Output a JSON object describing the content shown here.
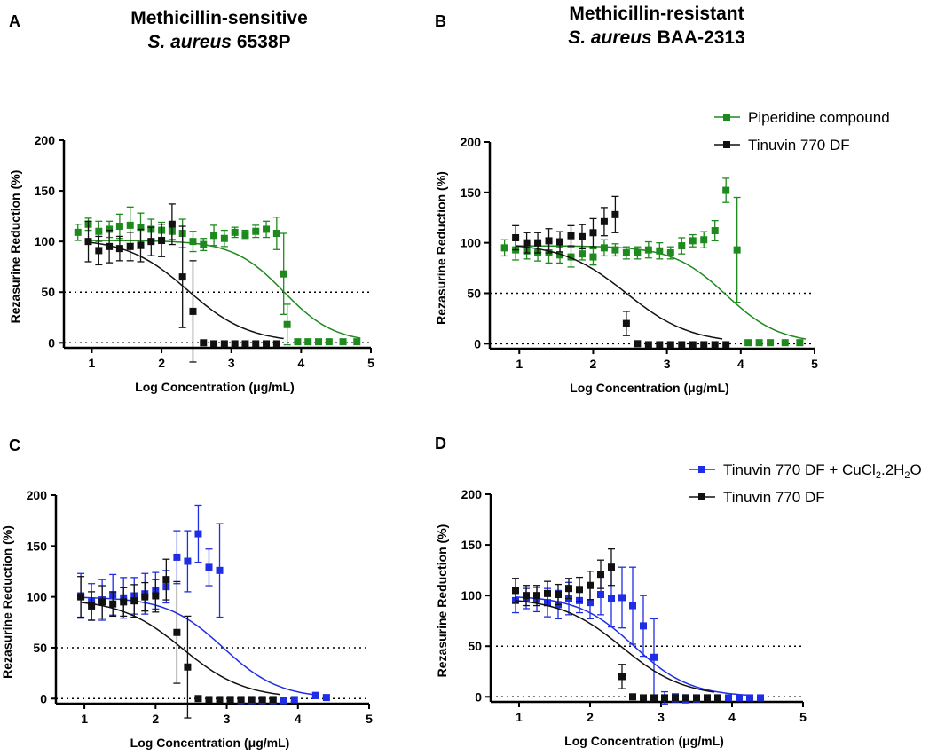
{
  "figure": {
    "column_titles": {
      "A": {
        "line1": "Methicillin-sensitive",
        "species": "S. aureus",
        "strain": "6538P"
      },
      "B": {
        "line1": "Methicillin-resistant",
        "species": "S. aureus",
        "strain": "BAA-2313"
      }
    },
    "legends": {
      "top": [
        "Piperidine compound",
        "Tinuvin 770 DF"
      ],
      "bottom": [
        {
          "parts": [
            "Tinuvin 770 DF + CuCl",
            "2",
            ".2H",
            "2",
            "O"
          ]
        },
        {
          "parts": [
            "Tinuvin 770 DF"
          ]
        }
      ]
    },
    "colors": {
      "green": "#1e8a1e",
      "black": "#111111",
      "blue": "#1f2ee6"
    }
  },
  "chart_data": [
    {
      "panel": "A",
      "type": "scatter",
      "xlabel": "Log Concentration (μg/mL)",
      "ylabel": "Rezasurine Reduction (%)",
      "xlim": [
        0.6,
        5
      ],
      "ylim": [
        -5,
        200
      ],
      "xticks": [
        "1",
        "2",
        "3",
        "4",
        "5"
      ],
      "yticks": [
        "0",
        "50",
        "100",
        "150",
        "200"
      ],
      "reference_lines": [
        50,
        0
      ],
      "series": [
        {
          "name": "Piperidine compound",
          "color": "#1e8a1e",
          "x": [
            0.8,
            0.95,
            1.1,
            1.25,
            1.4,
            1.55,
            1.7,
            1.85,
            2.0,
            2.15,
            2.3,
            2.45,
            2.6,
            2.75,
            2.9,
            3.05,
            3.2,
            3.35,
            3.5,
            3.65,
            3.75,
            3.8,
            3.95,
            4.1,
            4.25,
            4.4,
            4.6,
            4.8
          ],
          "y": [
            109,
            117,
            110,
            112,
            115,
            116,
            114,
            112,
            111,
            110,
            108,
            100,
            97,
            106,
            103,
            109,
            107,
            110,
            112,
            108,
            68,
            18,
            1,
            1,
            1,
            1,
            1,
            1
          ],
          "err": [
            8,
            6,
            10,
            8,
            12,
            18,
            14,
            10,
            8,
            8,
            14,
            10,
            6,
            10,
            8,
            5,
            4,
            6,
            8,
            16,
            40,
            20,
            1,
            1,
            1,
            1,
            1,
            1
          ],
          "fit": {
            "top": 101,
            "bottom": 0,
            "logIC50": 3.75,
            "hill": 1.2,
            "xmax": 4.85
          }
        },
        {
          "name": "Tinuvin 770 DF",
          "color": "#111111",
          "x": [
            0.95,
            1.1,
            1.25,
            1.4,
            1.55,
            1.7,
            1.85,
            2.0,
            2.15,
            2.3,
            2.45,
            2.6,
            2.75,
            2.9,
            3.05,
            3.2,
            3.35,
            3.5,
            3.65
          ],
          "y": [
            100,
            91,
            95,
            93,
            95,
            96,
            100,
            101,
            117,
            65,
            31,
            0,
            -1,
            -1,
            -1,
            -1,
            -1,
            -1,
            -1
          ],
          "err": [
            20,
            14,
            16,
            12,
            14,
            16,
            14,
            16,
            20,
            50,
            50,
            1,
            1,
            1,
            1,
            1,
            1,
            1,
            1
          ],
          "fit": {
            "top": 103,
            "bottom": 0,
            "logIC50": 2.38,
            "hill": 1.0,
            "xmax": 3.75
          }
        }
      ]
    },
    {
      "panel": "B",
      "type": "scatter",
      "xlabel": "Log Concentration (μg/mL)",
      "ylabel": "Rezasurine Reduction (%)",
      "xlim": [
        0.6,
        5
      ],
      "ylim": [
        -5,
        200
      ],
      "xticks": [
        "1",
        "2",
        "3",
        "4",
        "5"
      ],
      "yticks": [
        "0",
        "50",
        "100",
        "150",
        "200"
      ],
      "reference_lines": [
        50,
        0
      ],
      "series": [
        {
          "name": "Piperidine compound",
          "color": "#1e8a1e",
          "x": [
            0.8,
            0.95,
            1.1,
            1.25,
            1.4,
            1.55,
            1.7,
            1.85,
            2.0,
            2.15,
            2.3,
            2.45,
            2.6,
            2.75,
            2.9,
            3.05,
            3.2,
            3.35,
            3.5,
            3.65,
            3.8,
            3.95,
            4.1,
            4.25,
            4.4,
            4.6,
            4.8
          ],
          "y": [
            95,
            93,
            92,
            90,
            90,
            88,
            86,
            89,
            86,
            95,
            93,
            90,
            90,
            93,
            92,
            90,
            97,
            102,
            103,
            112,
            152,
            93,
            1,
            1,
            1,
            1,
            1
          ],
          "err": [
            8,
            10,
            8,
            8,
            10,
            8,
            10,
            6,
            8,
            8,
            6,
            6,
            6,
            8,
            8,
            6,
            8,
            6,
            8,
            10,
            12,
            52,
            1,
            1,
            1,
            1,
            1
          ],
          "fit": {
            "top": 97,
            "bottom": 0,
            "logIC50": 3.8,
            "hill": 1.2,
            "xmax": 4.88
          }
        },
        {
          "name": "Tinuvin 770 DF",
          "color": "#111111",
          "x": [
            0.95,
            1.1,
            1.25,
            1.4,
            1.55,
            1.7,
            1.85,
            2.0,
            2.15,
            2.3,
            2.45,
            2.6,
            2.75,
            2.9,
            3.05,
            3.2,
            3.35,
            3.5,
            3.65,
            3.8
          ],
          "y": [
            105,
            100,
            100,
            102,
            101,
            107,
            106,
            110,
            121,
            128,
            20,
            0,
            -1,
            -1,
            -1,
            -1,
            -1,
            -1,
            -1,
            -1
          ],
          "err": [
            12,
            10,
            10,
            12,
            10,
            10,
            12,
            14,
            14,
            18,
            12,
            1,
            1,
            1,
            1,
            1,
            1,
            1,
            1,
            1
          ],
          "fit": {
            "top": 100,
            "bottom": 0,
            "logIC50": 2.45,
            "hill": 1.0,
            "xmax": 3.75
          }
        }
      ]
    },
    {
      "panel": "C",
      "type": "scatter",
      "xlabel": "Log Concentration (μg/mL)",
      "ylabel": "Rezasurine Reduction (%)",
      "xlim": [
        0.6,
        5
      ],
      "ylim": [
        -5,
        200
      ],
      "xticks": [
        "1",
        "2",
        "3",
        "4",
        "5"
      ],
      "yticks": [
        "0",
        "50",
        "100",
        "150",
        "200"
      ],
      "reference_lines": [
        50,
        0
      ],
      "series": [
        {
          "name": "Tinuvin 770 DF + CuCl2.2H2O",
          "color": "#1f2ee6",
          "x": [
            0.95,
            1.1,
            1.25,
            1.4,
            1.55,
            1.7,
            1.85,
            2.0,
            2.15,
            2.3,
            2.45,
            2.6,
            2.75,
            2.9,
            3.05,
            3.2,
            3.35,
            3.5,
            3.65,
            3.8,
            3.95,
            4.25,
            4.4
          ],
          "y": [
            101,
            95,
            97,
            102,
            99,
            101,
            103,
            106,
            110,
            139,
            135,
            162,
            129,
            126,
            -1,
            -2,
            -2,
            -2,
            -2,
            -2,
            -1,
            3,
            1
          ],
          "err": [
            22,
            18,
            20,
            20,
            20,
            18,
            20,
            18,
            16,
            26,
            30,
            28,
            18,
            46,
            2,
            2,
            2,
            2,
            2,
            2,
            2,
            3,
            2
          ],
          "fit": {
            "top": 100,
            "bottom": 0,
            "logIC50": 2.95,
            "hill": 1.1,
            "xmax": 4.3
          }
        },
        {
          "name": "Tinuvin 770 DF",
          "color": "#111111",
          "x": [
            0.95,
            1.1,
            1.25,
            1.4,
            1.55,
            1.7,
            1.85,
            2.0,
            2.15,
            2.3,
            2.45,
            2.6,
            2.75,
            2.9,
            3.05,
            3.2,
            3.35,
            3.5,
            3.65
          ],
          "y": [
            100,
            91,
            95,
            93,
            95,
            96,
            100,
            101,
            117,
            65,
            31,
            0,
            -1,
            -1,
            -1,
            -1,
            -1,
            -1,
            -1
          ],
          "err": [
            20,
            14,
            16,
            12,
            14,
            16,
            14,
            16,
            20,
            50,
            50,
            1,
            1,
            1,
            1,
            1,
            1,
            1,
            1
          ],
          "fit": {
            "top": 98,
            "bottom": 0,
            "logIC50": 2.38,
            "hill": 1.0,
            "xmax": 3.75
          }
        }
      ]
    },
    {
      "panel": "D",
      "type": "scatter",
      "xlabel": "Log Concentration (μg/mL)",
      "ylabel": "Rezasurine Reduction (%)",
      "xlim": [
        0.6,
        5
      ],
      "ylim": [
        -5,
        200
      ],
      "xticks": [
        "1",
        "2",
        "3",
        "4",
        "5"
      ],
      "yticks": [
        "0",
        "50",
        "100",
        "150",
        "200"
      ],
      "reference_lines": [
        50,
        0
      ],
      "series": [
        {
          "name": "Tinuvin 770 DF + CuCl2.2H2O",
          "color": "#1f2ee6",
          "x": [
            0.95,
            1.1,
            1.25,
            1.4,
            1.55,
            1.7,
            1.85,
            2.0,
            2.15,
            2.3,
            2.45,
            2.6,
            2.75,
            2.9,
            3.05,
            3.2,
            3.35,
            3.5,
            3.65,
            3.8,
            3.95,
            4.1,
            4.25,
            4.4
          ],
          "y": [
            95,
            97,
            96,
            93,
            91,
            97,
            95,
            93,
            101,
            97,
            98,
            90,
            70,
            39,
            -1,
            -1,
            -2,
            -2,
            -1,
            -1,
            -1,
            -1,
            -1,
            -1
          ],
          "err": [
            12,
            10,
            12,
            14,
            14,
            16,
            12,
            16,
            20,
            28,
            30,
            38,
            30,
            38,
            6,
            4,
            4,
            3,
            2,
            2,
            2,
            2,
            1,
            1
          ],
          "fit": {
            "top": 100,
            "bottom": 0,
            "logIC50": 2.62,
            "hill": 1.1,
            "xmax": 4.3
          }
        },
        {
          "name": "Tinuvin 770 DF",
          "color": "#111111",
          "x": [
            0.95,
            1.1,
            1.25,
            1.4,
            1.55,
            1.7,
            1.85,
            2.0,
            2.15,
            2.3,
            2.45,
            2.6,
            2.75,
            2.9,
            3.05,
            3.2,
            3.35,
            3.5,
            3.65,
            3.8
          ],
          "y": [
            105,
            100,
            100,
            102,
            101,
            107,
            106,
            110,
            121,
            128,
            20,
            0,
            -1,
            -1,
            -1,
            -1,
            -1,
            -1,
            -1,
            -1
          ],
          "err": [
            12,
            10,
            10,
            12,
            10,
            10,
            12,
            14,
            14,
            18,
            12,
            1,
            1,
            1,
            1,
            1,
            1,
            1,
            1,
            1
          ],
          "fit": {
            "top": 98,
            "bottom": 0,
            "logIC50": 2.45,
            "hill": 1.0,
            "xmax": 3.75
          }
        }
      ]
    }
  ]
}
